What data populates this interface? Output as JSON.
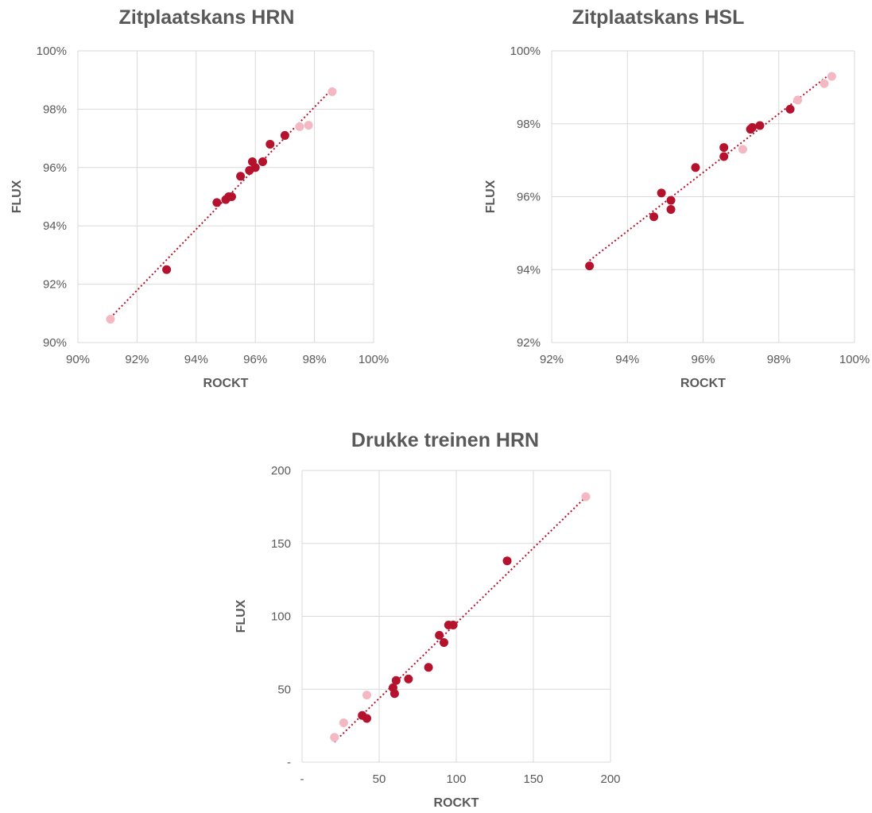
{
  "colors": {
    "primary_point": "#b5122e",
    "light_point": "#f4b8c3",
    "trendline": "#b5122e",
    "grid": "#d9d9d9",
    "text": "#595959"
  },
  "chart_data": [
    {
      "id": "hrn",
      "type": "scatter",
      "title": "Zitplaatskans HRN",
      "xlabel": "ROCKT",
      "ylabel": "FLUX",
      "xlim": [
        90,
        100
      ],
      "ylim": [
        90,
        100
      ],
      "xticks": [
        90,
        92,
        94,
        96,
        98,
        100
      ],
      "yticks": [
        90,
        92,
        94,
        96,
        98,
        100
      ],
      "xtick_labels": [
        "90%",
        "92%",
        "94%",
        "96%",
        "98%",
        "100%"
      ],
      "ytick_labels": [
        "90%",
        "92%",
        "94%",
        "96%",
        "98%",
        "100%"
      ],
      "grid": true,
      "trendline": true,
      "series": [
        {
          "color": "#b5122e",
          "points": [
            [
              93.0,
              92.5
            ],
            [
              94.7,
              94.8
            ],
            [
              95.0,
              94.9
            ],
            [
              95.1,
              95.0
            ],
            [
              95.2,
              95.0
            ],
            [
              95.5,
              95.7
            ],
            [
              95.8,
              95.9
            ],
            [
              95.9,
              96.2
            ],
            [
              96.0,
              96.0
            ],
            [
              96.25,
              96.2
            ],
            [
              96.5,
              96.8
            ],
            [
              97.0,
              97.1
            ]
          ]
        },
        {
          "color": "#f4b8c3",
          "points": [
            [
              91.1,
              90.8
            ],
            [
              97.5,
              97.4
            ],
            [
              97.8,
              97.45
            ],
            [
              98.6,
              98.6
            ]
          ]
        }
      ]
    },
    {
      "id": "hsl",
      "type": "scatter",
      "title": "Zitplaatskans HSL",
      "xlabel": "ROCKT",
      "ylabel": "FLUX",
      "xlim": [
        92,
        100
      ],
      "ylim": [
        92,
        100
      ],
      "xticks": [
        92,
        94,
        96,
        98,
        100
      ],
      "yticks": [
        92,
        94,
        96,
        98,
        100
      ],
      "xtick_labels": [
        "92%",
        "94%",
        "96%",
        "98%",
        "100%"
      ],
      "ytick_labels": [
        "92%",
        "94%",
        "96%",
        "98%",
        "100%"
      ],
      "grid": true,
      "trendline": true,
      "series": [
        {
          "color": "#b5122e",
          "points": [
            [
              93.0,
              94.1
            ],
            [
              94.7,
              95.45
            ],
            [
              94.9,
              96.1
            ],
            [
              95.15,
              95.9
            ],
            [
              95.15,
              95.65
            ],
            [
              95.8,
              96.8
            ],
            [
              96.55,
              97.35
            ],
            [
              96.55,
              97.1
            ],
            [
              97.25,
              97.85
            ],
            [
              97.3,
              97.9
            ],
            [
              97.5,
              97.95
            ],
            [
              98.3,
              98.4
            ]
          ]
        },
        {
          "color": "#f4b8c3",
          "points": [
            [
              97.05,
              97.3
            ],
            [
              98.5,
              98.65
            ],
            [
              99.2,
              99.1
            ],
            [
              99.4,
              99.3
            ]
          ]
        }
      ]
    },
    {
      "id": "drukke",
      "type": "scatter",
      "title": "Drukke treinen HRN",
      "xlabel": "ROCKT",
      "ylabel": "FLUX",
      "xlim": [
        0,
        200
      ],
      "ylim": [
        0,
        200
      ],
      "xticks": [
        0,
        50,
        100,
        150,
        200
      ],
      "yticks": [
        0,
        50,
        100,
        150,
        200
      ],
      "xtick_labels": [
        "-",
        "50",
        "100",
        "150",
        "200"
      ],
      "ytick_labels": [
        "-",
        "50",
        "100",
        "150",
        "200"
      ],
      "grid": true,
      "trendline": true,
      "series": [
        {
          "color": "#b5122e",
          "points": [
            [
              39,
              32
            ],
            [
              42,
              30
            ],
            [
              59,
              51
            ],
            [
              60,
              47
            ],
            [
              61,
              56
            ],
            [
              69,
              57
            ],
            [
              82,
              65
            ],
            [
              89,
              87
            ],
            [
              92,
              82
            ],
            [
              95,
              94
            ],
            [
              98,
              94
            ],
            [
              133,
              138
            ]
          ]
        },
        {
          "color": "#f4b8c3",
          "points": [
            [
              21,
              17
            ],
            [
              27,
              27
            ],
            [
              42,
              46
            ],
            [
              184,
              182
            ]
          ]
        }
      ]
    }
  ]
}
